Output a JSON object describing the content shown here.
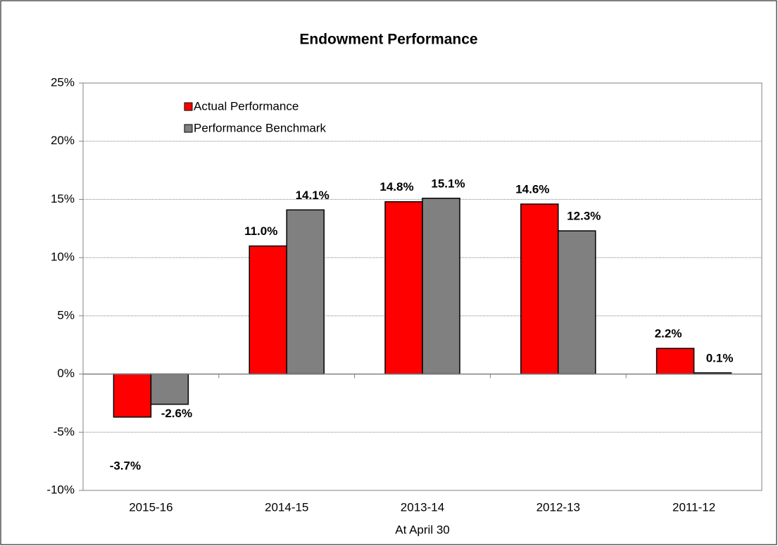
{
  "chart_data": {
    "type": "bar",
    "title": "Endowment Performance",
    "x_label": "At April 30",
    "categories": [
      "2015-16",
      "2014-15",
      "2013-14",
      "2012-13",
      "2011-12"
    ],
    "series": [
      {
        "name": "Actual Performance",
        "color": "#ff0000",
        "values": [
          -3.7,
          11.0,
          14.8,
          14.6,
          2.2
        ],
        "value_labels": [
          "-3.7%",
          "11.0%",
          "14.8%",
          "14.6%",
          "2.2%"
        ]
      },
      {
        "name": "Performance Benchmark",
        "color": "#808080",
        "values": [
          -2.6,
          14.1,
          15.1,
          12.3,
          0.1
        ],
        "value_labels": [
          "-2.6%",
          "14.1%",
          "15.1%",
          "12.3%",
          "0.1%"
        ]
      }
    ],
    "ylim": [
      -10,
      25
    ],
    "yticks": [
      {
        "value": -10,
        "label": "-10%"
      },
      {
        "value": -5,
        "label": "-5%"
      },
      {
        "value": 0,
        "label": "0%"
      },
      {
        "value": 5,
        "label": "5%"
      },
      {
        "value": 10,
        "label": "10%"
      },
      {
        "value": 15,
        "label": "15%"
      },
      {
        "value": 20,
        "label": "20%"
      },
      {
        "value": 25,
        "label": "25%"
      }
    ],
    "grid": true,
    "legend": "upper left"
  }
}
